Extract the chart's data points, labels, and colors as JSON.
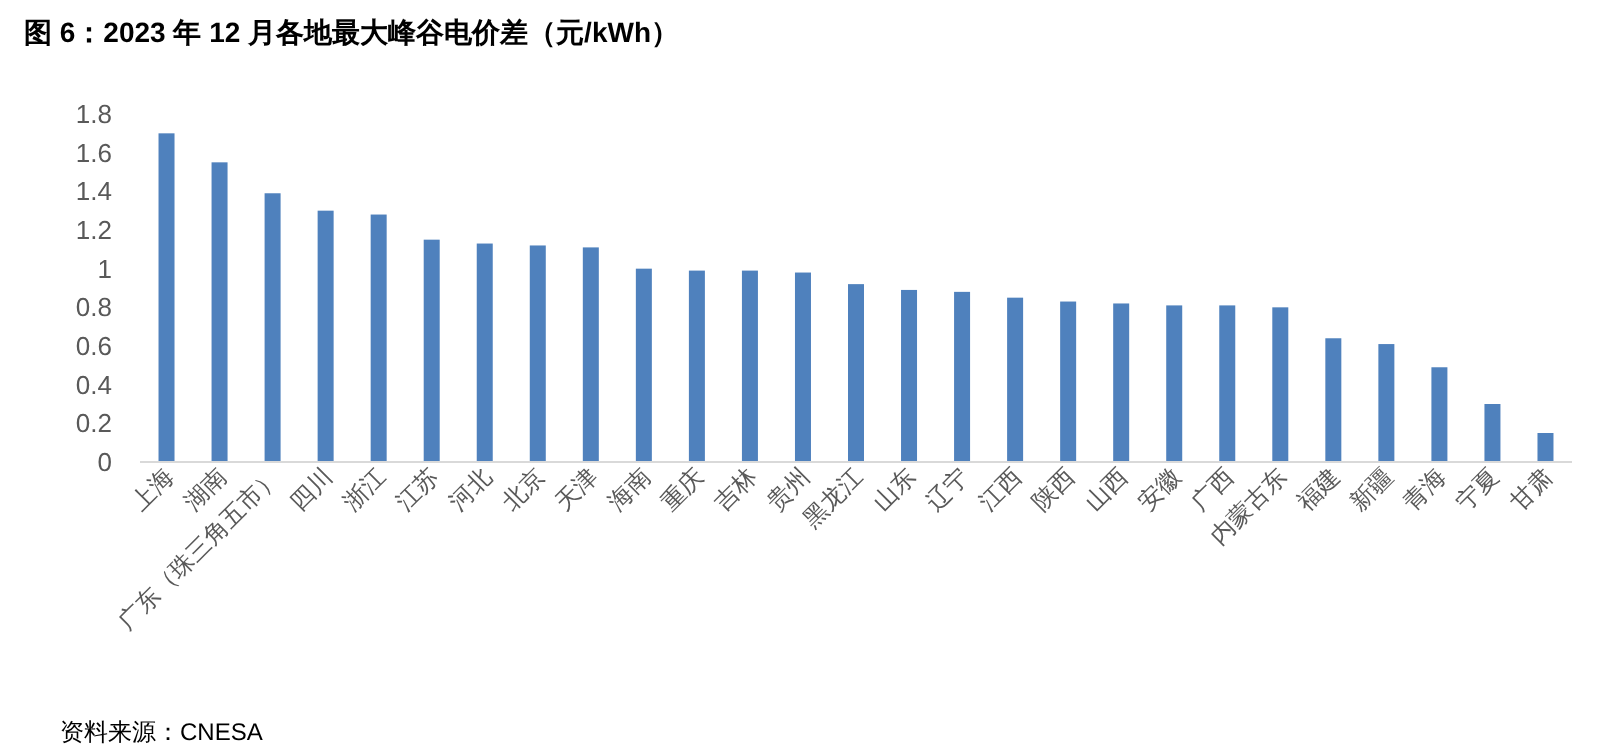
{
  "chart_data": {
    "type": "bar",
    "title": "图 6：2023 年 12 月各地最大峰谷电价差（元/kWh）",
    "categories": [
      "上海",
      "湖南",
      "广东（珠三角五市）",
      "四川",
      "浙江",
      "江苏",
      "河北",
      "北京",
      "天津",
      "海南",
      "重庆",
      "吉林",
      "贵州",
      "黑龙江",
      "山东",
      "辽宁",
      "江西",
      "陕西",
      "山西",
      "安徽",
      "广西",
      "内蒙古东",
      "福建",
      "新疆",
      "青海",
      "宁夏",
      "甘肃"
    ],
    "values": [
      1.7,
      1.55,
      1.39,
      1.3,
      1.28,
      1.15,
      1.13,
      1.12,
      1.11,
      1.0,
      0.99,
      0.99,
      0.98,
      0.92,
      0.89,
      0.88,
      0.85,
      0.83,
      0.82,
      0.81,
      0.81,
      0.8,
      0.64,
      0.61,
      0.49,
      0.3,
      0.15
    ],
    "color": "#4f81bd",
    "ylim": [
      0,
      1.8
    ],
    "yticks": [
      0,
      0.2,
      0.4,
      0.6,
      0.8,
      1,
      1.2,
      1.4,
      1.6,
      1.8
    ],
    "grid": false,
    "annotations": [
      "资料来源：CNESA"
    ]
  }
}
